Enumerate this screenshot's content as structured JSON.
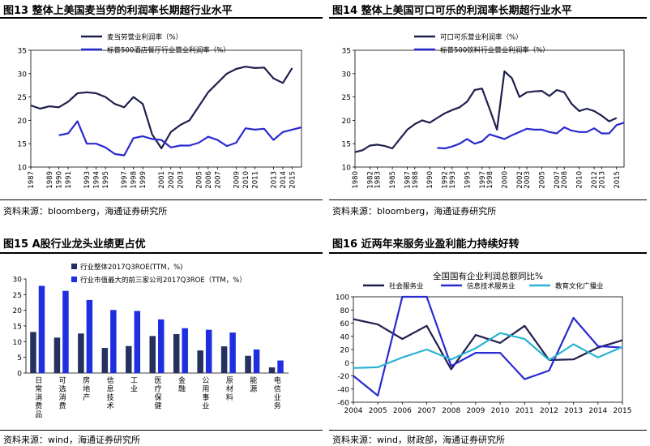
{
  "panels": [
    {
      "title": "图13 整体上美国麦当劳的利润率长期超行业水平",
      "source": "资料来源：bloomberg，海通证券研究所"
    },
    {
      "title": "图14 整体上美国可口可乐的利润率长期超行业水平",
      "source": "资料来源：bloomberg，海通证券研究所"
    },
    {
      "title": "图15 A股行业龙头业绩更占优",
      "source": "资料来源：wind，海通证券研究所"
    },
    {
      "title": "图16 近两年来服务业盈利能力持续好转",
      "source": "资料来源：wind，财政部，海通证券研究所"
    }
  ],
  "colors": {
    "dark": "#1f1f4f",
    "blue": "#2a2ad0",
    "bar_dark": "#24315e",
    "bar_blue": "#1f2fe0",
    "cyan": "#2ab3d4"
  },
  "chart_data": [
    {
      "type": "line",
      "title": "",
      "x": [
        1987,
        1988,
        1989,
        1990,
        1991,
        1992,
        1993,
        1994,
        1995,
        1996,
        1997,
        1998,
        1999,
        2000,
        2001,
        2002,
        2003,
        2004,
        2005,
        2006,
        2007,
        2008,
        2009,
        2010,
        2011,
        2012,
        2013,
        2014,
        2015,
        2016
      ],
      "x_ticks": [
        "1987",
        "1989",
        "1990",
        "1991",
        "1993",
        "1994",
        "1995",
        "1997",
        "1998",
        "1999",
        "2001",
        "2002",
        "2003",
        "2005",
        "2006",
        "2007",
        "2009",
        "2010",
        "2011",
        "2013",
        "2014",
        "2015"
      ],
      "ylim": [
        10,
        35
      ],
      "y_ticks": [
        10,
        15,
        20,
        25,
        30,
        35
      ],
      "legend": "top-center",
      "series": [
        {
          "name": "麦当劳营业利润率（%）",
          "color": "#1f1f4f",
          "values": [
            23.2,
            22.5,
            23.0,
            22.8,
            24.0,
            25.8,
            26.0,
            25.8,
            25.0,
            23.5,
            22.8,
            25.0,
            23.5,
            17.0,
            14.0,
            17.5,
            19.0,
            20.0,
            23.0,
            26.0,
            28.0,
            30.0,
            31.0,
            31.5,
            31.2,
            31.3,
            29.0,
            28.0,
            31.2,
            null
          ]
        },
        {
          "name": "标普500酒店餐厅行业营业利润率（%）",
          "color": "#2a2ad0",
          "values": [
            null,
            null,
            null,
            16.8,
            17.2,
            19.8,
            15.0,
            15.0,
            14.2,
            12.8,
            12.5,
            16.2,
            16.6,
            16.0,
            15.8,
            14.2,
            14.6,
            14.6,
            15.2,
            16.5,
            15.8,
            14.5,
            15.2,
            18.3,
            18.0,
            18.2,
            15.8,
            17.5,
            18.0,
            18.5
          ]
        }
      ]
    },
    {
      "type": "line",
      "title": "",
      "x": [
        1980,
        1981,
        1982,
        1983,
        1984,
        1985,
        1986,
        1987,
        1988,
        1989,
        1990,
        1991,
        1992,
        1993,
        1994,
        1995,
        1996,
        1997,
        1998,
        1999,
        2000,
        2001,
        2002,
        2003,
        2004,
        2005,
        2006,
        2007,
        2008,
        2009,
        2010,
        2011,
        2012,
        2013,
        2014,
        2015,
        2016
      ],
      "x_ticks": [
        "1980",
        "1982",
        "1983",
        "1985",
        "1987",
        "1988",
        "1990",
        "1992",
        "1993",
        "1995",
        "1997",
        "1998",
        "2000",
        "2002",
        "2003",
        "2005",
        "2007",
        "2008",
        "2010",
        "2012",
        "2013",
        "2015"
      ],
      "ylim": [
        10,
        35
      ],
      "y_ticks": [
        10,
        15,
        20,
        25,
        30,
        35
      ],
      "legend": "top-center",
      "series": [
        {
          "name": "可口可乐营业利润率（%）",
          "color": "#1f1f4f",
          "values": [
            13.2,
            13.6,
            14.6,
            14.8,
            14.5,
            14.0,
            16.0,
            18.0,
            19.2,
            20.0,
            19.5,
            20.5,
            21.5,
            22.2,
            22.8,
            24.0,
            26.5,
            26.8,
            22.5,
            18.0,
            30.5,
            29.0,
            25.0,
            26.0,
            26.2,
            26.3,
            25.2,
            26.5,
            26.0,
            23.5,
            22.0,
            22.5,
            22.0,
            21.0,
            19.8,
            20.5,
            null
          ]
        },
        {
          "name": "标普500饮料行业营业利润率（%）",
          "color": "#2a2ad0",
          "values": [
            null,
            null,
            null,
            null,
            null,
            null,
            null,
            null,
            null,
            null,
            null,
            14.1,
            14.0,
            14.4,
            15.0,
            16.0,
            15.0,
            15.5,
            17.0,
            16.5,
            16.0,
            16.8,
            17.5,
            18.2,
            18.0,
            18.0,
            17.5,
            17.2,
            18.5,
            17.8,
            17.5,
            17.5,
            18.3,
            17.2,
            17.2,
            19.0,
            19.5
          ]
        }
      ]
    },
    {
      "type": "bar",
      "title": "",
      "categories": [
        "日常消费品",
        "可选消费",
        "房地产",
        "信息技术",
        "工业",
        "医疗保健",
        "金融",
        "公用事业",
        "原材料",
        "能源",
        "电信业务"
      ],
      "ylim": [
        0,
        30
      ],
      "y_ticks": [
        0,
        5,
        10,
        15,
        20,
        25,
        30
      ],
      "legend": "top-center",
      "series": [
        {
          "name": "行业整体2017Q3ROE(TTM，%)",
          "color": "#24315e",
          "values": [
            13.1,
            11.3,
            12.6,
            8.0,
            8.6,
            11.8,
            12.4,
            7.2,
            8.5,
            5.5,
            1.8
          ]
        },
        {
          "name": "行业市值最大的前三家公司2017Q3ROE（TTM，%）",
          "color": "#1f2fe0",
          "values": [
            27.8,
            26.2,
            23.3,
            20.1,
            19.8,
            17.1,
            14.3,
            13.8,
            12.9,
            7.5,
            4.0
          ]
        }
      ]
    },
    {
      "type": "line",
      "title": "全国国有企业利润总额同比%",
      "x": [
        2004,
        2005,
        2006,
        2007,
        2008,
        2009,
        2010,
        2011,
        2012,
        2013,
        2014,
        2015
      ],
      "x_ticks": [
        "2004",
        "2005",
        "2006",
        "2007",
        "2008",
        "2009",
        "2010",
        "2011",
        "2012",
        "2013",
        "2014",
        "2015"
      ],
      "ylim": [
        -60,
        100
      ],
      "y_ticks": [
        -60,
        -40,
        -20,
        0,
        20,
        40,
        60,
        80,
        100
      ],
      "legend": "top-center",
      "series": [
        {
          "name": "社会服务业",
          "color": "#1f1f4f",
          "values": [
            66,
            58,
            36,
            56,
            -10,
            42,
            30,
            56,
            4,
            5,
            23,
            34
          ]
        },
        {
          "name": "信息技术服务业",
          "color": "#2a2ad0",
          "values": [
            -20,
            -50,
            100,
            100,
            -5,
            15,
            15,
            -25,
            -12,
            68,
            25,
            23
          ]
        },
        {
          "name": "教育文化广播业",
          "color": "#2ab3d4",
          "values": [
            -8,
            -7,
            8,
            20,
            5,
            22,
            45,
            36,
            4,
            28,
            8,
            24
          ]
        }
      ]
    }
  ]
}
